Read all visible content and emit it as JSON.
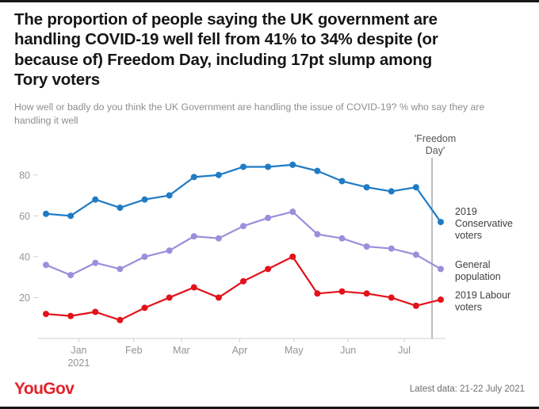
{
  "header": {
    "title": "The proportion of people saying the UK government are handling COVID-19 well fell from 41% to 34% despite (or because of) Freedom Day, including 17pt slump among Tory voters",
    "title_lines": [
      "The proportion of people saying the UK government are",
      "handling COVID-19 well fell from 41% to 34% despite (or",
      "because of) Freedom Day, including 17pt slump among",
      "Tory voters"
    ],
    "subtitle": "How well or badly do you think the UK Government are handling the issue of COVID-19? % who say they are handling it well",
    "subtitle_lines": [
      "How well or badly do you think the UK Government are handling the issue of COVID-19? % who say they are",
      "handling it well"
    ]
  },
  "footer": {
    "logo": "YouGov",
    "logo_color": "#e0232b",
    "latest_data": "Latest data: 21-22 July 2021"
  },
  "chart_data": {
    "type": "line",
    "title": "The proportion of people saying the UK government are handling COVID-19 well fell from 41% to 34% despite (or because of) Freedom Day, including 17pt slump among Tory voters",
    "question": "How well or badly do you think the UK Government are handling the issue of COVID-19? % who say they are handling it well",
    "ylim": [
      0,
      90
    ],
    "yticks": [
      20,
      40,
      60,
      80
    ],
    "grid": false,
    "legend_position": "right-of-lines",
    "xticks": [
      {
        "label": "Jan",
        "sublabel": "2021",
        "pos": 0.1
      },
      {
        "label": "Feb",
        "pos": 0.235
      },
      {
        "label": "Mar",
        "pos": 0.352
      },
      {
        "label": "Apr",
        "pos": 0.495
      },
      {
        "label": "May",
        "pos": 0.628
      },
      {
        "label": "Jun",
        "pos": 0.761
      },
      {
        "label": "Jul",
        "pos": 0.899
      }
    ],
    "annotation": {
      "text": "'Freedom Day'",
      "lines": [
        "'Freedom",
        "Day'"
      ],
      "pos": 0.967,
      "color": "#a8a8a8"
    },
    "series": [
      {
        "name": "2019 Conservative voters",
        "label_lines": [
          "2019",
          "Conservative",
          "voters"
        ],
        "color": "#1f7bc4",
        "values": [
          61,
          60,
          68,
          64,
          68,
          70,
          79,
          80,
          84,
          84,
          85,
          82,
          77,
          74,
          72,
          74,
          57
        ]
      },
      {
        "name": "General population",
        "label_lines": [
          "General",
          "population"
        ],
        "color": "#9d8edb",
        "values": [
          36,
          31,
          37,
          34,
          40,
          43,
          50,
          49,
          55,
          59,
          62,
          51,
          49,
          45,
          44,
          41,
          34
        ]
      },
      {
        "name": "2019 Labour voters",
        "label_lines": [
          "2019 Labour",
          "voters"
        ],
        "color": "#e2121b",
        "values": [
          12,
          11,
          13,
          9,
          15,
          20,
          25,
          20,
          28,
          34,
          40,
          22,
          23,
          22,
          20,
          16,
          19
        ]
      }
    ]
  }
}
